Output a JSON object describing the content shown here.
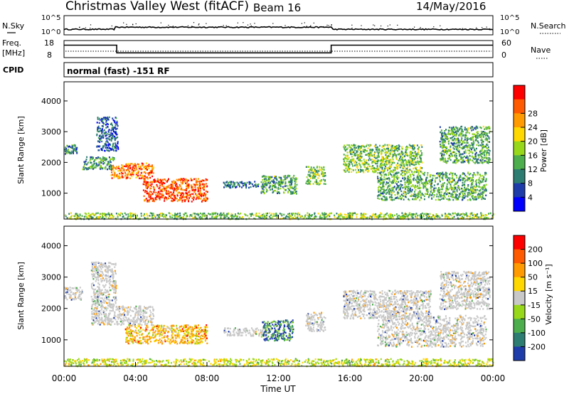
{
  "header": {
    "station": "Christmas Valley West (fitACF)",
    "beam": "Beam 16",
    "date": "14/May/2016"
  },
  "summary_panels": {
    "nsky": {
      "label": "N.Sky",
      "ticks": [
        "10^5",
        "10^0"
      ]
    },
    "nsearch": {
      "label": "N.Search",
      "ticks": [
        "10^5",
        "10^0"
      ]
    },
    "freq": {
      "label_line1": "Freq.",
      "label_line2": "[MHz]",
      "ticks": [
        "18",
        "8"
      ],
      "series": [
        {
          "t": 0,
          "v": 15.5
        },
        {
          "t": 2.95,
          "v": 15.5
        },
        {
          "t": 2.95,
          "v": 10.6
        },
        {
          "t": 14.95,
          "v": 10.6
        },
        {
          "t": 14.95,
          "v": 15.5
        },
        {
          "t": 24,
          "v": 15.5
        }
      ]
    },
    "nave": {
      "label": "Nave",
      "ticks": [
        "60",
        "0"
      ]
    },
    "cpid": {
      "label": "CPID",
      "text": "normal (fast) -151 RF"
    }
  },
  "chart_data": [
    {
      "type": "heatmap",
      "quantity": "power",
      "ylabel": "Slant Range [km]",
      "ylim": [
        180,
        4600
      ],
      "yticks": [
        "1000",
        "2000",
        "3000",
        "4000"
      ],
      "xlim": [
        0,
        24
      ],
      "colorbar_label": "Power [dB]",
      "colorbar_ticks": [
        "4",
        "8",
        "12",
        "16",
        "20",
        "24",
        "28"
      ],
      "colorbar_range": [
        0,
        32
      ],
      "colors": [
        "#0000ff",
        "#1e3caa",
        "#2e7d72",
        "#4cae4c",
        "#98d81b",
        "#ffd800",
        "#ff9a00",
        "#ff5a00",
        "#ff0000"
      ],
      "regions": [
        {
          "t0": 2.6,
          "t1": 5.0,
          "r0": 1500,
          "r1": 2000,
          "level": 25
        },
        {
          "t0": 4.4,
          "t1": 8.0,
          "r0": 750,
          "r1": 1500,
          "level": 27
        },
        {
          "t0": 1.0,
          "t1": 2.8,
          "r0": 1800,
          "r1": 2200,
          "level": 11
        },
        {
          "t0": 0.0,
          "t1": 0.7,
          "r0": 2300,
          "r1": 2600,
          "level": 9
        },
        {
          "t0": 1.8,
          "t1": 3.0,
          "r0": 2400,
          "r1": 3500,
          "level": 6
        },
        {
          "t0": 8.9,
          "t1": 11.7,
          "r0": 1200,
          "r1": 1400,
          "level": 8
        },
        {
          "t0": 11.0,
          "t1": 13.0,
          "r0": 1000,
          "r1": 1600,
          "level": 12
        },
        {
          "t0": 13.5,
          "t1": 14.6,
          "r0": 1300,
          "r1": 1900,
          "level": 14
        },
        {
          "t0": 15.6,
          "t1": 20.0,
          "r0": 1700,
          "r1": 2600,
          "level": 14
        },
        {
          "t0": 17.5,
          "t1": 23.6,
          "r0": 800,
          "r1": 1700,
          "level": 12
        },
        {
          "t0": 21.0,
          "t1": 23.8,
          "r0": 2000,
          "r1": 3200,
          "level": 12
        },
        {
          "t0": 0.0,
          "t1": 24.0,
          "r0": 180,
          "r1": 380,
          "level": 14
        }
      ]
    },
    {
      "type": "heatmap",
      "quantity": "velocity",
      "ylabel": "Slant Range [km]",
      "ylim": [
        180,
        4600
      ],
      "yticks": [
        "1000",
        "2000",
        "3000",
        "4000"
      ],
      "xlim": [
        0,
        24
      ],
      "xticks": [
        "00:00",
        "04:00",
        "08:00",
        "12:00",
        "16:00",
        "20:00",
        "00:00"
      ],
      "xlabel": "Time UT",
      "colorbar_label": "Velocity [m s⁻¹]",
      "colorbar_ticks": [
        "200",
        "100",
        "50",
        "15",
        "-15",
        "-50",
        "-100",
        "-200"
      ],
      "colors": [
        "#1e3caa",
        "#2e7d72",
        "#4cae4c",
        "#98d81b",
        "#c8c8c8",
        "#ffd800",
        "#ff9a00",
        "#ff5a00",
        "#ff0000"
      ],
      "regions": [
        {
          "t0": 0.0,
          "t1": 1.0,
          "r0": 2300,
          "r1": 2700,
          "level": "gray"
        },
        {
          "t0": 1.5,
          "t1": 5.0,
          "r0": 1500,
          "r1": 2100,
          "level": "gray"
        },
        {
          "t0": 1.5,
          "t1": 2.9,
          "r0": 2100,
          "r1": 3500,
          "level": "gray"
        },
        {
          "t0": 3.4,
          "t1": 8.0,
          "r0": 900,
          "r1": 1500,
          "level": "orange-green"
        },
        {
          "t0": 8.9,
          "t1": 11.3,
          "r0": 1150,
          "r1": 1400,
          "level": "gray"
        },
        {
          "t0": 11.0,
          "t1": 12.8,
          "r0": 1000,
          "r1": 1650,
          "level": "blue-green"
        },
        {
          "t0": 13.5,
          "t1": 14.6,
          "r0": 1300,
          "r1": 1900,
          "level": "gray"
        },
        {
          "t0": 15.6,
          "t1": 20.5,
          "r0": 1700,
          "r1": 2600,
          "level": "gray"
        },
        {
          "t0": 17.5,
          "t1": 23.6,
          "r0": 800,
          "r1": 1800,
          "level": "gray"
        },
        {
          "t0": 21.0,
          "t1": 23.8,
          "r0": 2000,
          "r1": 3200,
          "level": "gray"
        },
        {
          "t0": 0.0,
          "t1": 24.0,
          "r0": 180,
          "r1": 420,
          "level": "green-orange"
        }
      ]
    }
  ]
}
